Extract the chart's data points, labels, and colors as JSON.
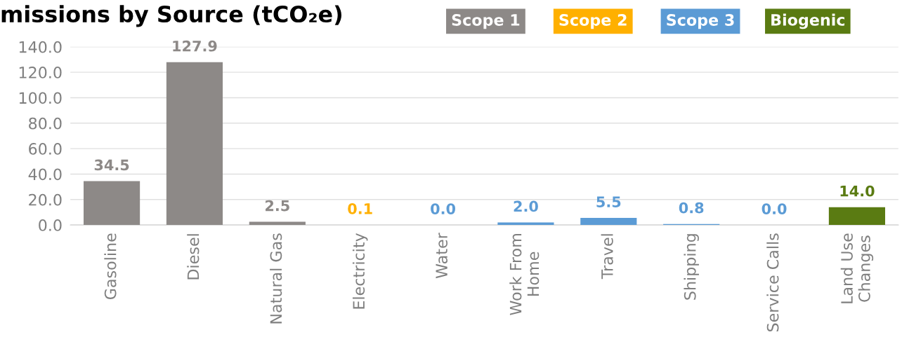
{
  "chart_data": {
    "type": "bar",
    "title": "missions by Source (tCO₂e)",
    "categories": [
      "Gasoline",
      "Diesel",
      "Natural Gas",
      "Electricity",
      "Water",
      "Work From\nHome",
      "Travel",
      "Shipping",
      "Service Calls",
      "Land Use\nChanges"
    ],
    "series": [
      {
        "name": "Scope 1",
        "color": "#8d8987",
        "values": [
          34.5,
          127.9,
          2.5,
          null,
          null,
          null,
          null,
          null,
          null,
          null
        ],
        "value_labels": [
          "34.5",
          "127.9",
          "2.5",
          null,
          null,
          null,
          null,
          null,
          null,
          null
        ]
      },
      {
        "name": "Scope 2",
        "color": "#ffb000",
        "values": [
          null,
          null,
          null,
          0.1,
          null,
          null,
          null,
          null,
          null,
          null
        ],
        "value_labels": [
          null,
          null,
          null,
          "0.1",
          null,
          null,
          null,
          null,
          null,
          null
        ]
      },
      {
        "name": "Scope 3",
        "color": "#5b9bd5",
        "values": [
          null,
          null,
          null,
          null,
          0.0,
          2.0,
          5.5,
          0.8,
          0.0,
          null
        ],
        "value_labels": [
          null,
          null,
          null,
          null,
          "0.0",
          "2.0",
          "5.5",
          "0.8",
          "0.0",
          null
        ]
      },
      {
        "name": "Biogenic",
        "color": "#5a7b12",
        "values": [
          null,
          null,
          null,
          null,
          null,
          null,
          null,
          null,
          null,
          14.0
        ],
        "value_labels": [
          null,
          null,
          null,
          null,
          null,
          null,
          null,
          null,
          null,
          "14.0"
        ]
      }
    ],
    "ylim": [
      0,
      140
    ],
    "yticks": [
      {
        "value": 0,
        "label": "0.0"
      },
      {
        "value": 20,
        "label": "20.0"
      },
      {
        "value": 40,
        "label": "40.0"
      },
      {
        "value": 60,
        "label": "60.0"
      },
      {
        "value": 80,
        "label": "80.0"
      },
      {
        "value": 100,
        "label": "100.0"
      },
      {
        "value": 120,
        "label": "120.0"
      },
      {
        "value": 140,
        "label": "140.0"
      }
    ],
    "grid": "y",
    "legend": "top right"
  }
}
